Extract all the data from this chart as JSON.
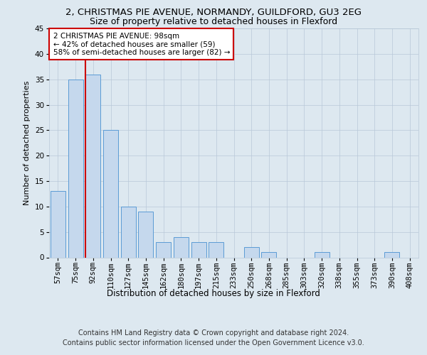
{
  "title": "2, CHRISTMAS PIE AVENUE, NORMANDY, GUILDFORD, GU3 2EG",
  "subtitle": "Size of property relative to detached houses in Flexford",
  "xlabel": "Distribution of detached houses by size in Flexford",
  "ylabel": "Number of detached properties",
  "categories": [
    "57sqm",
    "75sqm",
    "92sqm",
    "110sqm",
    "127sqm",
    "145sqm",
    "162sqm",
    "180sqm",
    "197sqm",
    "215sqm",
    "233sqm",
    "250sqm",
    "268sqm",
    "285sqm",
    "303sqm",
    "320sqm",
    "338sqm",
    "355sqm",
    "373sqm",
    "390sqm",
    "408sqm"
  ],
  "values": [
    13,
    35,
    36,
    25,
    10,
    9,
    3,
    4,
    3,
    3,
    0,
    2,
    1,
    0,
    0,
    1,
    0,
    0,
    0,
    1,
    0
  ],
  "bar_color": "#c5d8ed",
  "bar_edge_color": "#5b9bd5",
  "annotation_text": "2 CHRISTMAS PIE AVENUE: 98sqm\n← 42% of detached houses are smaller (59)\n58% of semi-detached houses are larger (82) →",
  "annotation_box_color": "#ffffff",
  "annotation_box_edge_color": "#cc0000",
  "property_line_color": "#cc0000",
  "property_line_xindex": 2,
  "ylim": [
    0,
    45
  ],
  "yticks": [
    0,
    5,
    10,
    15,
    20,
    25,
    30,
    35,
    40,
    45
  ],
  "background_color": "#dde8f0",
  "plot_bg_color": "#dde8f0",
  "footer_line1": "Contains HM Land Registry data © Crown copyright and database right 2024.",
  "footer_line2": "Contains public sector information licensed under the Open Government Licence v3.0.",
  "title_fontsize": 9.5,
  "subtitle_fontsize": 9,
  "xlabel_fontsize": 8.5,
  "ylabel_fontsize": 8,
  "tick_fontsize": 7.5,
  "annotation_fontsize": 7.5,
  "footer_fontsize": 7
}
